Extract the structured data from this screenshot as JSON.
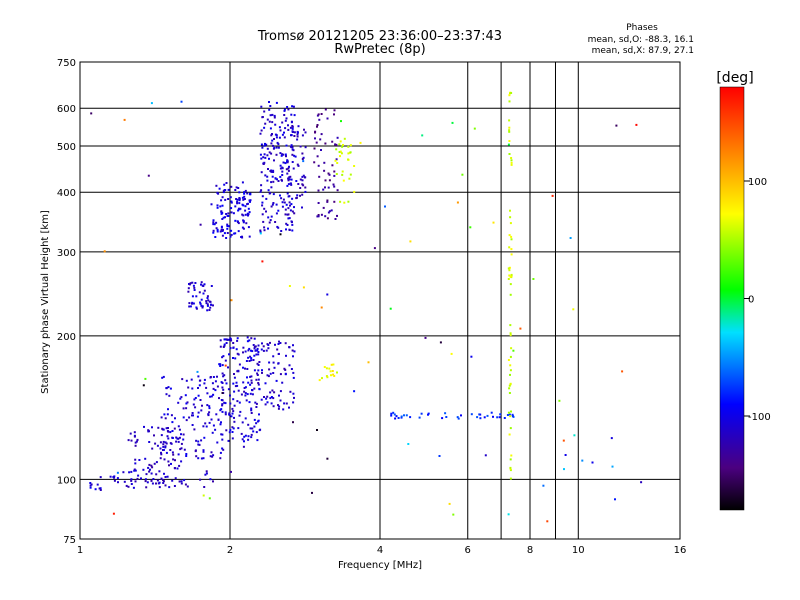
{
  "chart_data": {
    "type": "scatter",
    "title": "Tromsø 20121205 23:36:00–23:37:43",
    "subtitle": "RwPretec (8p)",
    "xlabel": "Frequency [MHz]",
    "ylabel": "Stationary phase Virtual Height [km]",
    "x_scale": "log",
    "y_scale": "log",
    "xlim": [
      1,
      16
    ],
    "ylim": [
      75,
      750
    ],
    "x_ticks": [
      1,
      2,
      4,
      6,
      8,
      10,
      16
    ],
    "x_minor_ticks": [
      7,
      9
    ],
    "y_ticks": [
      75,
      100,
      200,
      300,
      400,
      500,
      600,
      750
    ],
    "grid": true,
    "legend": {
      "header": "Phases",
      "lines": [
        "mean, sd,O: -88.3, 16.1",
        "mean, sd,X:  87.9, 27.1"
      ],
      "placement": "top-right"
    },
    "colorbar": {
      "label": "[deg]",
      "range": [
        -180,
        180
      ],
      "ticks": [
        100,
        0,
        -100
      ]
    },
    "clusters": [
      {
        "desc": "F-region O trace",
        "x": [
          1.85,
          2.2
        ],
        "y": [
          320,
          420
        ],
        "phase": -105,
        "n": 130
      },
      {
        "desc": "F-region O upper",
        "x": [
          2.3,
          2.7
        ],
        "y": [
          330,
          620
        ],
        "phase": -110,
        "n": 200
      },
      {
        "desc": "F-region O upper 2",
        "x": [
          2.6,
          2.85
        ],
        "y": [
          350,
          560
        ],
        "phase": -115,
        "n": 60
      },
      {
        "desc": "F-region X",
        "x": [
          2.95,
          3.3
        ],
        "y": [
          350,
          600
        ],
        "phase": -135,
        "n": 60
      },
      {
        "desc": "F-region X",
        "x": [
          3.25,
          3.55
        ],
        "y": [
          380,
          520
        ],
        "phase": 60,
        "n": 30
      },
      {
        "desc": "E-region low",
        "x": [
          1.25,
          1.6
        ],
        "y": [
          96,
          130
        ],
        "phase": -115,
        "n": 90
      },
      {
        "desc": "E-region rise",
        "x": [
          1.45,
          2.0
        ],
        "y": [
          110,
          165
        ],
        "phase": -110,
        "n": 160
      },
      {
        "desc": "E-region upper",
        "x": [
          1.9,
          2.3
        ],
        "y": [
          120,
          200
        ],
        "phase": -108,
        "n": 170
      },
      {
        "desc": "E-region upper 2",
        "x": [
          2.2,
          2.7
        ],
        "y": [
          140,
          195
        ],
        "phase": -112,
        "n": 90
      },
      {
        "desc": "E-region X",
        "x": [
          3.0,
          3.3
        ],
        "y": [
          160,
          175
        ],
        "phase": 70,
        "n": 15
      },
      {
        "desc": "sporadic 230 km",
        "x": [
          1.65,
          1.85
        ],
        "y": [
          225,
          260
        ],
        "phase": -110,
        "n": 50
      },
      {
        "desc": "E-region low edge",
        "x": [
          1.03,
          1.15
        ],
        "y": [
          95,
          102
        ],
        "phase": -110,
        "n": 10
      },
      {
        "desc": "low band 100 km",
        "x": [
          1.15,
          1.9
        ],
        "y": [
          96,
          104
        ],
        "phase": -115,
        "n": 40
      },
      {
        "desc": "echo band 135 km",
        "x": [
          4.0,
          7.6
        ],
        "y": [
          134,
          138
        ],
        "phase": -80,
        "n": 40
      },
      {
        "desc": "vertical line 7.3 MHz",
        "x": [
          7.25,
          7.35
        ],
        "y": [
          100,
          650
        ],
        "phase": 60,
        "n": 60
      },
      {
        "desc": "noise",
        "x": [
          1.05,
          13.5
        ],
        "y": [
          80,
          650
        ],
        "phase": 0,
        "n": 80
      }
    ]
  }
}
